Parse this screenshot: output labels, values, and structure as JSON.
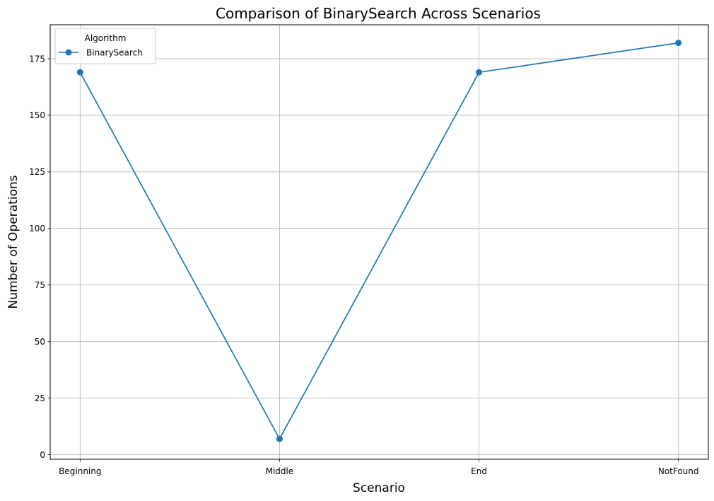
{
  "chart_data": {
    "type": "line",
    "title": "Comparison of BinarySearch Across Scenarios",
    "xlabel": "Scenario",
    "ylabel": "Number of Operations",
    "categories": [
      "Beginning",
      "Middle",
      "End",
      "NotFound"
    ],
    "series": [
      {
        "name": "BinarySearch",
        "values": [
          169,
          7,
          169,
          182
        ],
        "color": "#1f77b4",
        "marker": "circle"
      }
    ],
    "ylim": [
      -2,
      190
    ],
    "yticks": [
      0,
      25,
      50,
      75,
      100,
      125,
      150,
      175
    ],
    "grid": true,
    "legend": {
      "title": "Algorithm",
      "position": "top-left"
    }
  }
}
